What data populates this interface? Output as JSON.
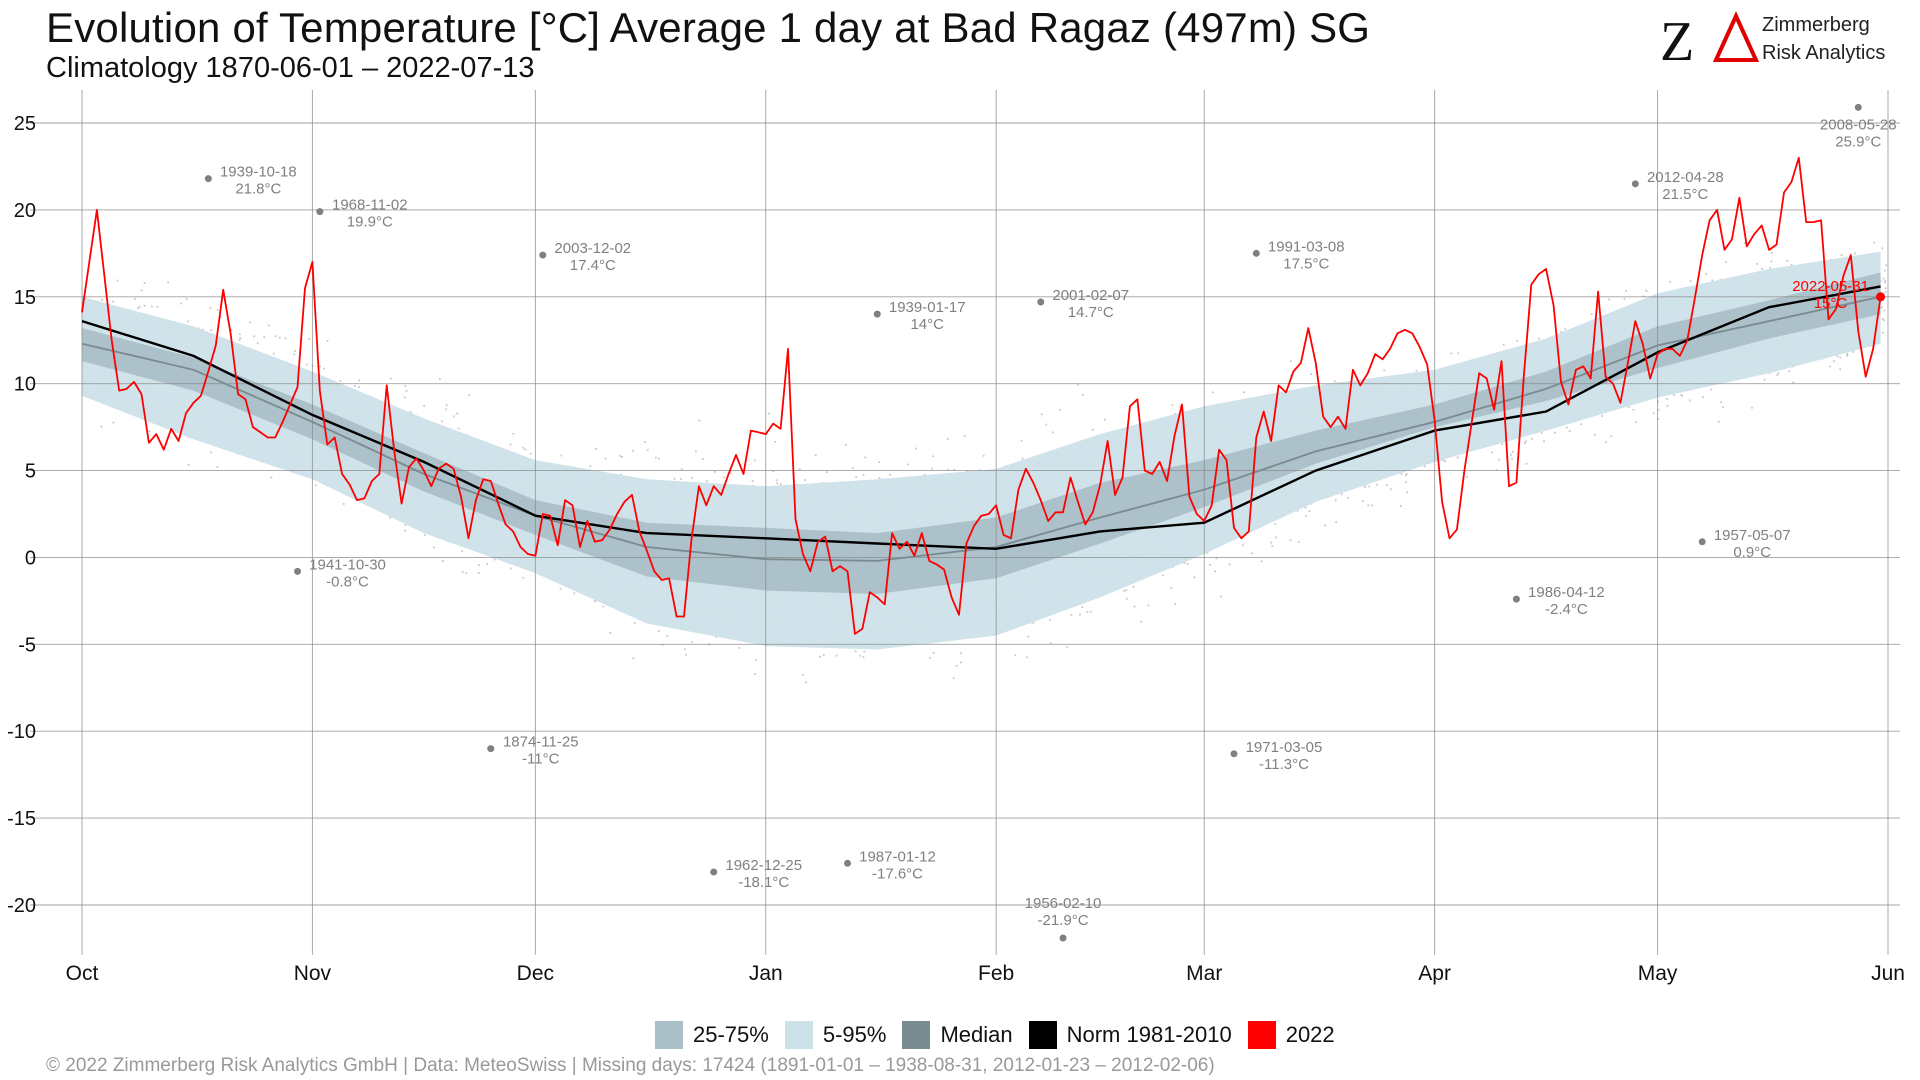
{
  "header": {
    "title": "Evolution of Temperature [°C] Average 1 day at Bad Ragaz (497m) SG",
    "subtitle": "Climatology 1870-06-01 – 2022-07-13"
  },
  "logo": {
    "mark": "ZA",
    "line1": "Zimmerberg",
    "line2": "Risk Analytics",
    "mark_color": "#111111",
    "accent_color": "#e00000"
  },
  "legend": {
    "items": [
      {
        "label": "25-75%",
        "color": "#aabfc7"
      },
      {
        "label": "5-95%",
        "color": "#cde1e9"
      },
      {
        "label": "Median",
        "color": "#7a8a91"
      },
      {
        "label": "Norm 1981-2010",
        "color": "#000000"
      },
      {
        "label": "2022",
        "color": "#ff0000"
      }
    ]
  },
  "footer": {
    "text": "©  2022 Zimmerberg Risk Analytics GmbH | Data: MeteoSwiss | Missing days: 17424 (1891-01-01 – 1938-08-31, 2012-01-23 – 2012-02-06)"
  },
  "chart_data": {
    "type": "line",
    "title": "Evolution of Temperature [°C] Average 1 day at Bad Ragaz (497m) SG",
    "subtitle": "Climatology 1870-06-01 – 2022-07-13",
    "x_unit": "day of season (1 Oct = 0)",
    "x_ticks": [
      {
        "label": "Oct",
        "day": 0
      },
      {
        "label": "Nov",
        "day": 31
      },
      {
        "label": "Dec",
        "day": 61
      },
      {
        "label": "Jan",
        "day": 92
      },
      {
        "label": "Feb",
        "day": 123
      },
      {
        "label": "Mar",
        "day": 151
      },
      {
        "label": "Apr",
        "day": 182
      },
      {
        "label": "May",
        "day": 212
      },
      {
        "label": "Jun",
        "day": 243
      }
    ],
    "xlim": [
      0,
      243
    ],
    "ylim": [
      -23,
      27
    ],
    "y_ticks": [
      25,
      20,
      15,
      10,
      5,
      0,
      -5,
      -10,
      -15,
      -20
    ],
    "grid": true,
    "legend_position": "bottom",
    "band_days": [
      0,
      15,
      31,
      46,
      61,
      76,
      92,
      107,
      123,
      137,
      151,
      166,
      182,
      197,
      212,
      227,
      242
    ],
    "p05": [
      9.3,
      6.8,
      4.5,
      1.4,
      -0.9,
      -3.8,
      -5.1,
      -5.3,
      -4.5,
      -2.3,
      0.2,
      3.2,
      5.5,
      7.3,
      9.2,
      10.6,
      12.3
    ],
    "p25": [
      11.3,
      9.6,
      6.8,
      3.8,
      1.3,
      -1.1,
      -1.9,
      -2.1,
      -1.2,
      0.8,
      2.9,
      5.4,
      7.5,
      9.0,
      10.9,
      12.6,
      14.0
    ],
    "p75": [
      13.2,
      11.5,
      8.8,
      6.0,
      3.3,
      2.0,
      1.7,
      1.4,
      2.3,
      4.3,
      5.6,
      7.3,
      8.8,
      10.7,
      13.3,
      14.8,
      16.4
    ],
    "p95": [
      15.0,
      13.3,
      10.7,
      8.0,
      5.6,
      4.5,
      4.1,
      4.5,
      5.1,
      7.1,
      8.7,
      9.9,
      10.8,
      12.6,
      15.2,
      16.6,
      17.6
    ],
    "median": [
      12.3,
      10.8,
      7.8,
      4.8,
      2.4,
      0.6,
      -0.1,
      -0.2,
      0.6,
      2.3,
      3.9,
      6.1,
      7.8,
      9.7,
      12.2,
      13.6,
      15.0
    ],
    "norm_1981_2010": [
      13.6,
      11.6,
      8.2,
      5.5,
      2.4,
      1.4,
      1.1,
      0.8,
      0.5,
      1.5,
      2.0,
      5.0,
      7.3,
      8.4,
      11.8,
      14.4,
      15.6
    ],
    "series_2022": {
      "name": "2022",
      "days": [
        0,
        2,
        4,
        5,
        6,
        7,
        8,
        9,
        10,
        11,
        12,
        13,
        14,
        15,
        16,
        17,
        18,
        19,
        20,
        21,
        22,
        23,
        24,
        25,
        26,
        27,
        28,
        29,
        30,
        31,
        32,
        33,
        34,
        35,
        36,
        37,
        38,
        39,
        40,
        41,
        42,
        43,
        44,
        45,
        46,
        47,
        48,
        49,
        50,
        51,
        52,
        53,
        54,
        55,
        56,
        57,
        58,
        59,
        60,
        61,
        62,
        63,
        64,
        65,
        66,
        67,
        68,
        69,
        70,
        71,
        72,
        73,
        74,
        75,
        76,
        77,
        78,
        79,
        80,
        81,
        82,
        83,
        84,
        85,
        86,
        87,
        88,
        89,
        90,
        91,
        92,
        93,
        94,
        95,
        96,
        97,
        98,
        99,
        100,
        101,
        102,
        103,
        104,
        105,
        106,
        107,
        108,
        109,
        110,
        111,
        112,
        113,
        114,
        115,
        116,
        117,
        118,
        119,
        120,
        121,
        122,
        123,
        124,
        125,
        126,
        127,
        128,
        129,
        130,
        131,
        132,
        133,
        134,
        135,
        136,
        137,
        138,
        139,
        140,
        141,
        142,
        143,
        144,
        145,
        146,
        147,
        148,
        149,
        150,
        151,
        152,
        153,
        154,
        155,
        156,
        157,
        158,
        159,
        160,
        161,
        162,
        163,
        164,
        165,
        166,
        167,
        168,
        169,
        170,
        171,
        172,
        173,
        174,
        175,
        176,
        177,
        178,
        179,
        180,
        181,
        182,
        183,
        184,
        185,
        186,
        187,
        188,
        189,
        190,
        191,
        192,
        193,
        194,
        195,
        196,
        197,
        198,
        199,
        200,
        201,
        202,
        203,
        204,
        205,
        206,
        207,
        208,
        209,
        210,
        211,
        212,
        213,
        214,
        215,
        216,
        217,
        218,
        219,
        220,
        221,
        222,
        223,
        224,
        225,
        226,
        227,
        228,
        229,
        230,
        231,
        232,
        233,
        234,
        235,
        236,
        237,
        238,
        239,
        240,
        241,
        242
      ],
      "values": [
        14.1,
        20.0,
        12.5,
        9.6,
        9.7,
        10.1,
        9.4,
        6.6,
        7.1,
        6.2,
        7.4,
        6.7,
        8.3,
        8.9,
        9.3,
        10.7,
        12.2,
        15.4,
        12.9,
        9.4,
        9.1,
        7.5,
        7.2,
        6.9,
        6.9,
        7.8,
        8.8,
        9.8,
        15.5,
        17.0,
        9.6,
        6.5,
        6.9,
        4.8,
        4.2,
        3.3,
        3.4,
        4.4,
        4.8,
        9.9,
        6.2,
        3.1,
        5.2,
        5.7,
        5.0,
        4.1,
        5.1,
        5.4,
        5.1,
        3.5,
        1.1,
        3.3,
        4.5,
        4.4,
        3.1,
        1.9,
        1.5,
        0.6,
        0.2,
        0.1,
        2.5,
        2.4,
        0.7,
        3.3,
        3.0,
        0.6,
        2.1,
        0.9,
        1.0,
        1.6,
        2.5,
        3.2,
        3.6,
        1.5,
        0.4,
        -0.8,
        -1.3,
        -1.2,
        -3.4,
        -3.4,
        1.0,
        4.1,
        3.0,
        4.1,
        3.6,
        4.8,
        5.9,
        4.8,
        7.3,
        7.2,
        7.1,
        7.7,
        7.4,
        12.0,
        2.2,
        0.2,
        -0.8,
        0.9,
        1.2,
        -0.8,
        -0.5,
        -0.8,
        -4.4,
        -4.1,
        -2.0,
        -2.3,
        -2.7,
        1.4,
        0.5,
        0.9,
        0.1,
        1.4,
        -0.2,
        -0.4,
        -0.7,
        -2.3,
        -3.3,
        0.8,
        1.8,
        2.4,
        2.5,
        3.0,
        1.3,
        1.1,
        3.9,
        5.1,
        4.3,
        3.3,
        2.1,
        2.6,
        2.6,
        4.6,
        3.2,
        1.9,
        2.6,
        4.2,
        6.7,
        3.6,
        4.6,
        8.7,
        9.1,
        5.0,
        4.8,
        5.5,
        4.4,
        7.0,
        8.8,
        3.5,
        2.5,
        2.1,
        3.0,
        6.2,
        5.6,
        1.7,
        1.1,
        1.5,
        6.9,
        8.4,
        6.7,
        9.9,
        9.5,
        10.7,
        11.2,
        13.2,
        11.2,
        8.1,
        7.5,
        8.1,
        7.4,
        10.8,
        9.9,
        10.6,
        11.7,
        11.4,
        12.0,
        12.9,
        13.1,
        12.9,
        12.1,
        11.1,
        7.9,
        3.2,
        1.1,
        1.6,
        5.0,
        7.8,
        10.6,
        10.3,
        8.5,
        11.3,
        4.1,
        4.3,
        10.4,
        15.7,
        16.3,
        16.6,
        14.5,
        10.1,
        8.8,
        10.8,
        11.0,
        10.3,
        15.3,
        10.4,
        10.0,
        8.9,
        11.2,
        13.6,
        12.3,
        10.3,
        11.7,
        12.0,
        12.0,
        11.6,
        12.5,
        14.9,
        17.4,
        19.4,
        20.0,
        17.7,
        18.3,
        20.7,
        17.9,
        18.6,
        19.1,
        17.7,
        18.0,
        21.0,
        21.6,
        23.0,
        19.3,
        19.3,
        19.4,
        13.7,
        14.3,
        16.2,
        17.4,
        13.0,
        10.4,
        12.0,
        15.0
      ]
    },
    "records": [
      {
        "date": "1939-10-18",
        "label": "21.8°C",
        "day": 17,
        "value": 21.8,
        "text_pos": "right"
      },
      {
        "date": "1968-11-02",
        "label": "19.9°C",
        "day": 32,
        "value": 19.9,
        "text_pos": "right"
      },
      {
        "date": "1941-10-30",
        "label": "-0.8°C",
        "day": 29,
        "value": -0.8,
        "text_pos": "right"
      },
      {
        "date": "2003-12-02",
        "label": "17.4°C",
        "day": 62,
        "value": 17.4,
        "text_pos": "right"
      },
      {
        "date": "1874-11-25",
        "label": "-11°C",
        "day": 55,
        "value": -11.0,
        "text_pos": "right"
      },
      {
        "date": "1962-12-25",
        "label": "-18.1°C",
        "day": 85,
        "value": -18.1,
        "text_pos": "right"
      },
      {
        "date": "1939-01-17",
        "label": "14°C",
        "day": 107,
        "value": 14.0,
        "text_pos": "right"
      },
      {
        "date": "1987-01-12",
        "label": "-17.6°C",
        "day": 103,
        "value": -17.6,
        "text_pos": "right"
      },
      {
        "date": "2001-02-07",
        "label": "14.7°C",
        "day": 129,
        "value": 14.7,
        "text_pos": "right"
      },
      {
        "date": "1956-02-10",
        "label": "-21.9°C",
        "day": 132,
        "value": -21.9,
        "text_pos": "above"
      },
      {
        "date": "1991-03-08",
        "label": "17.5°C",
        "day": 158,
        "value": 17.5,
        "text_pos": "right"
      },
      {
        "date": "1971-03-05",
        "label": "-11.3°C",
        "day": 155,
        "value": -11.3,
        "text_pos": "right"
      },
      {
        "date": "1986-04-12",
        "label": "-2.4°C",
        "day": 193,
        "value": -2.4,
        "text_pos": "right"
      },
      {
        "date": "2012-04-28",
        "label": "21.5°C",
        "day": 209,
        "value": 21.5,
        "text_pos": "right"
      },
      {
        "date": "1957-05-07",
        "label": "0.9°C",
        "day": 218,
        "value": 0.9,
        "text_pos": "right"
      },
      {
        "date": "2008-05-28",
        "label": "25.9°C",
        "day": 239,
        "value": 25.9,
        "text_pos": "below"
      },
      {
        "date": "2022-05-31",
        "label": "15°C",
        "day": 242,
        "value": 15.0,
        "text_pos": "left",
        "current": true
      }
    ]
  }
}
